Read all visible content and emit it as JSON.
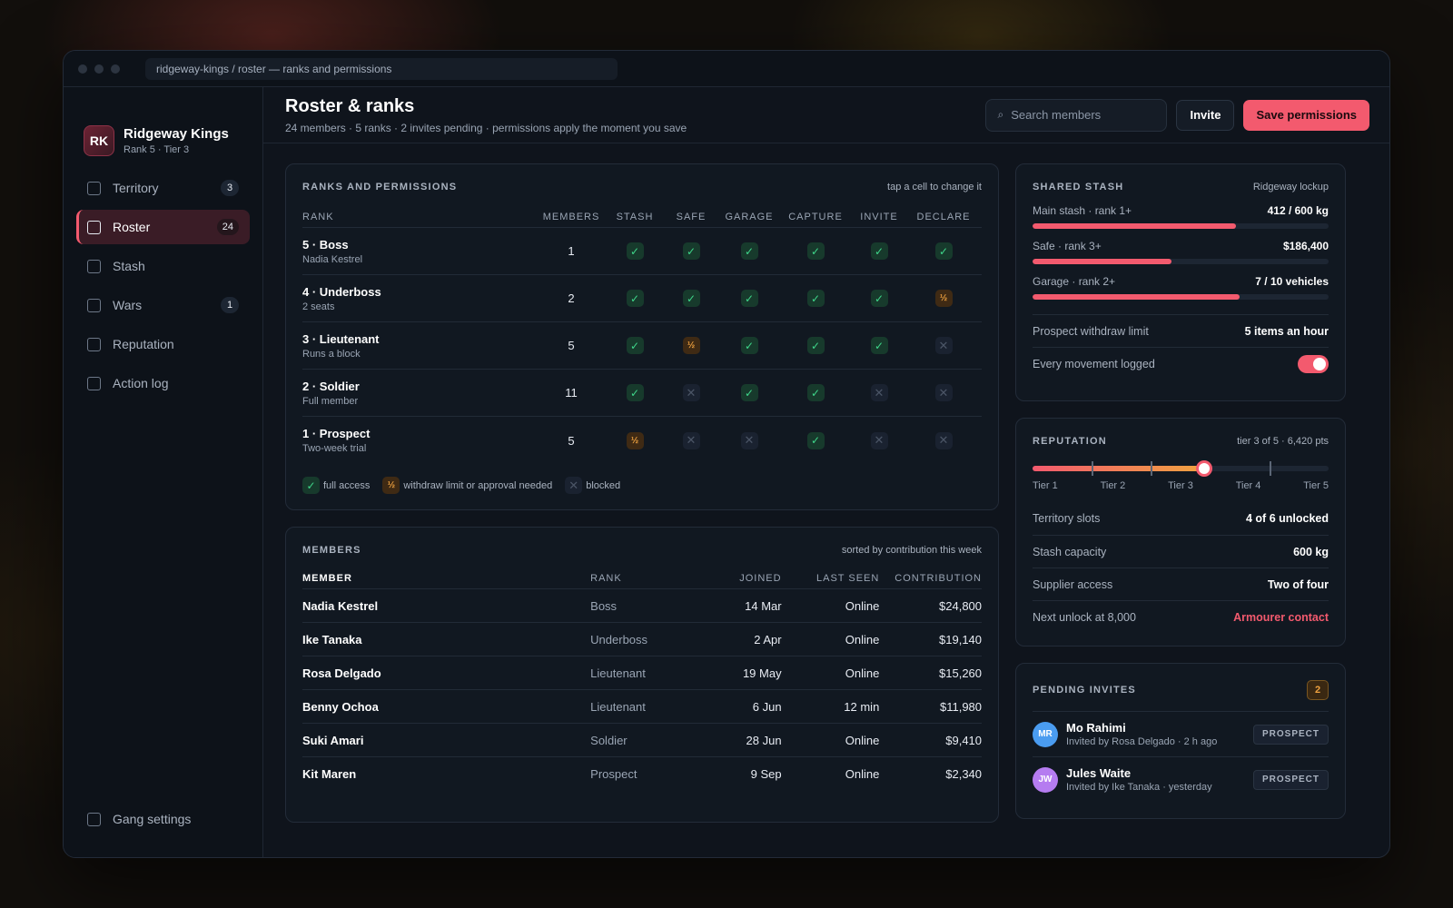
{
  "window": {
    "address": "ridgeway-kings / roster — ranks and permissions"
  },
  "brand": {
    "initials": "RK",
    "name": "Ridgeway Kings",
    "sub": "Rank 5 · Tier 3"
  },
  "sidebar": {
    "items": [
      {
        "label": "Territory",
        "badge": "3",
        "active": false
      },
      {
        "label": "Roster",
        "badge": "24",
        "active": true
      },
      {
        "label": "Stash",
        "badge": "",
        "active": false
      },
      {
        "label": "Wars",
        "badge": "1",
        "active": false
      },
      {
        "label": "Reputation",
        "badge": "",
        "active": false
      },
      {
        "label": "Action log",
        "badge": "",
        "active": false
      }
    ],
    "bottom": {
      "label": "Gang settings"
    }
  },
  "header": {
    "title": "Roster & ranks",
    "subtitle": "24 members · 5 ranks · 2 invites pending · permissions apply the moment you save",
    "search_placeholder": "Search members",
    "invite_label": "Invite",
    "save_label": "Save permissions"
  },
  "ranks": {
    "title": "RANKS AND PERMISSIONS",
    "note": "tap a cell to change it",
    "columns": [
      "RANK",
      "MEMBERS",
      "STASH",
      "SAFE",
      "GARAGE",
      "CAPTURE",
      "INVITE",
      "DECLARE"
    ],
    "rows": [
      {
        "name": "5 · Boss",
        "sub": "Nadia Kestrel",
        "members": "1",
        "perms": [
          "full",
          "full",
          "full",
          "full",
          "full",
          "full"
        ]
      },
      {
        "name": "4 · Underboss",
        "sub": "2 seats",
        "members": "2",
        "perms": [
          "full",
          "full",
          "full",
          "full",
          "full",
          "partial"
        ]
      },
      {
        "name": "3 · Lieutenant",
        "sub": "Runs a block",
        "members": "5",
        "perms": [
          "full",
          "partial",
          "full",
          "full",
          "full",
          "blocked"
        ]
      },
      {
        "name": "2 · Soldier",
        "sub": "Full member",
        "members": "11",
        "perms": [
          "full",
          "blocked",
          "full",
          "full",
          "blocked",
          "blocked"
        ]
      },
      {
        "name": "1 · Prospect",
        "sub": "Two-week trial",
        "members": "5",
        "perms": [
          "partial",
          "blocked",
          "blocked",
          "full",
          "blocked",
          "blocked"
        ]
      }
    ],
    "legend": {
      "full": "full access",
      "partial": "withdraw limit or approval needed",
      "blocked": "blocked"
    },
    "symbols": {
      "full": "✓",
      "partial": "½",
      "blocked": "✕"
    }
  },
  "members": {
    "title": "MEMBERS",
    "note": "sorted by contribution this week",
    "columns": [
      "MEMBER",
      "RANK",
      "JOINED",
      "LAST SEEN",
      "CONTRIBUTION"
    ],
    "rows": [
      {
        "name": "Nadia Kestrel",
        "rank": "Boss",
        "joined": "14 Mar",
        "seen": "Online",
        "contribution": "$24,800"
      },
      {
        "name": "Ike Tanaka",
        "rank": "Underboss",
        "joined": "2 Apr",
        "seen": "Online",
        "contribution": "$19,140"
      },
      {
        "name": "Rosa Delgado",
        "rank": "Lieutenant",
        "joined": "19 May",
        "seen": "Online",
        "contribution": "$15,260"
      },
      {
        "name": "Benny Ochoa",
        "rank": "Lieutenant",
        "joined": "6 Jun",
        "seen": "12 min",
        "contribution": "$11,980"
      },
      {
        "name": "Suki Amari",
        "rank": "Soldier",
        "joined": "28 Jun",
        "seen": "Online",
        "contribution": "$9,410"
      },
      {
        "name": "Kit Maren",
        "rank": "Prospect",
        "joined": "9 Sep",
        "seen": "Online",
        "contribution": "$2,340"
      }
    ]
  },
  "stash": {
    "title": "SHARED STASH",
    "note": "Ridgeway lockup",
    "items": [
      {
        "label": "Main stash · rank 1+",
        "value": "412 / 600 kg",
        "fill": 0.687
      },
      {
        "label": "Safe · rank 3+",
        "value": "$186,400",
        "fill": 0.47
      },
      {
        "label": "Garage · rank 2+",
        "value": "7 / 10 vehicles",
        "fill": 0.7
      }
    ],
    "withdraw_label": "Prospect withdraw limit",
    "withdraw_value": "5 items an hour",
    "logged_label": "Every movement logged",
    "logged_on": true
  },
  "reputation": {
    "title": "REPUTATION",
    "note": "tier 3 of 5 · 6,420 pts",
    "progress": 0.58,
    "tiers": [
      "Tier 1",
      "Tier 2",
      "Tier 3",
      "Tier 4",
      "Tier 5"
    ],
    "rows": [
      {
        "label": "Territory slots",
        "value": "4 of 6 unlocked",
        "accent": false
      },
      {
        "label": "Stash capacity",
        "value": "600 kg",
        "accent": false
      },
      {
        "label": "Supplier access",
        "value": "Two of four",
        "accent": false
      },
      {
        "label": "Next unlock at 8,000",
        "value": "Armourer contact",
        "accent": true
      }
    ]
  },
  "invites": {
    "title": "PENDING INVITES",
    "count": "2",
    "rows": [
      {
        "initials": "MR",
        "name": "Mo Rahimi",
        "sub": "Invited by Rosa Delgado · 2 h ago",
        "tag": "PROSPECT",
        "color": "#4a9cf0"
      },
      {
        "initials": "JW",
        "name": "Jules Waite",
        "sub": "Invited by Ike Tanaka · yesterday",
        "tag": "PROSPECT",
        "color": "#b57cf0"
      }
    ]
  },
  "colors": {
    "accent": "#f35a6e",
    "full": "#3fd68a",
    "partial": "#f0a340"
  }
}
